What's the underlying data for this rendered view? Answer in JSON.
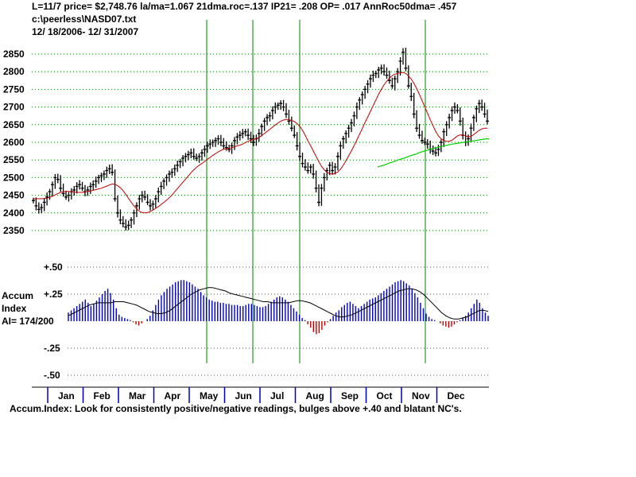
{
  "header": {
    "line1": "L=11/7  price= $2,748.76  la/ma=1.067 21dma.roc=.137 IP21= .208 OP= .017 AnnRoc50dma= .457",
    "line2": "c:\\peerless\\NASD07.txt",
    "line3": " 12/ 18/2006- 12/ 31/2007"
  },
  "colors": {
    "bars": "#000000",
    "ma21": "#c00000",
    "ma200": "#00d000",
    "vlines": "#008000",
    "accum_pos": "#0000c0",
    "accum_neg": "#c00000",
    "accum_ma": "#000000",
    "grid": "#008000"
  },
  "chart_data": [
    {
      "type": "line",
      "title": "",
      "xlabel": "",
      "ylabel": "",
      "y_ticks": [
        "2850",
        "2800",
        "2750",
        "2700",
        "2650",
        "2600",
        "2550",
        "2500",
        "2450",
        "2400",
        "2350"
      ],
      "ylim": [
        2350,
        2850
      ],
      "grid": true,
      "series": [
        {
          "values": [
            2435,
            2420,
            2410,
            2415,
            2430,
            2445,
            2460,
            2480,
            2500,
            2495,
            2470,
            2455,
            2445,
            2450,
            2460,
            2465,
            2475,
            2480,
            2470,
            2460,
            2465,
            2475,
            2480,
            2490,
            2500,
            2505,
            2510,
            2520,
            2525,
            2515,
            2440,
            2400,
            2380,
            2370,
            2360,
            2365,
            2380,
            2400,
            2420,
            2440,
            2450,
            2445,
            2430,
            2420,
            2425,
            2440,
            2460,
            2475,
            2490,
            2500,
            2510,
            2515,
            2525,
            2535,
            2545,
            2555,
            2560,
            2565,
            2570,
            2560,
            2555,
            2560,
            2570,
            2580,
            2590,
            2595,
            2600,
            2605,
            2610,
            2600,
            2590,
            2585,
            2580,
            2590,
            2605,
            2615,
            2620,
            2625,
            2630,
            2620,
            2610,
            2600,
            2610,
            2625,
            2645,
            2660,
            2670,
            2675,
            2690,
            2700,
            2705,
            2710,
            2700,
            2680,
            2660,
            2640,
            2620,
            2590,
            2560,
            2540,
            2530,
            2520,
            2530,
            2510,
            2470,
            2430,
            2470,
            2500,
            2520,
            2535,
            2520,
            2530,
            2560,
            2590,
            2610,
            2625,
            2640,
            2655,
            2675,
            2700,
            2720,
            2735,
            2750,
            2765,
            2780,
            2790,
            2795,
            2805,
            2810,
            2800,
            2790,
            2775,
            2760,
            2780,
            2800,
            2830,
            2855,
            2810,
            2760,
            2730,
            2680,
            2640,
            2620,
            2605,
            2600,
            2595,
            2580,
            2575,
            2570,
            2580,
            2600,
            2630,
            2650,
            2670,
            2690,
            2700,
            2690,
            2660,
            2620,
            2600,
            2610,
            2640,
            2670,
            2695,
            2710,
            2700,
            2680,
            2660
          ]
        },
        {
          "values": [
            2440,
            2440,
            2440,
            2440,
            2441,
            2442,
            2444,
            2447,
            2451,
            2455,
            2458,
            2460,
            2461,
            2461,
            2460,
            2459,
            2458,
            2458,
            2458,
            2459,
            2461,
            2462,
            2464,
            2466,
            2468,
            2470,
            2473,
            2476,
            2479,
            2482,
            2481,
            2477,
            2471,
            2463,
            2452,
            2441,
            2430,
            2420,
            2411,
            2405,
            2401,
            2400,
            2401,
            2404,
            2408,
            2413,
            2418,
            2424,
            2430,
            2436,
            2443,
            2451,
            2460,
            2469,
            2478,
            2487,
            2496,
            2505,
            2514,
            2522,
            2529,
            2535,
            2540,
            2546,
            2552,
            2557,
            2563,
            2568,
            2573,
            2577,
            2580,
            2582,
            2583,
            2585,
            2587,
            2590,
            2592,
            2595,
            2599,
            2603,
            2606,
            2608,
            2611,
            2614,
            2619,
            2625,
            2631,
            2637,
            2643,
            2649,
            2655,
            2660,
            2663,
            2665,
            2664,
            2662,
            2659,
            2653,
            2645,
            2634,
            2620,
            2604,
            2590,
            2575,
            2560,
            2545,
            2532,
            2522,
            2515,
            2511,
            2510,
            2512,
            2516,
            2524,
            2535,
            2548,
            2562,
            2576,
            2591,
            2607,
            2623,
            2639,
            2656,
            2672,
            2688,
            2704,
            2720,
            2736,
            2750,
            2763,
            2773,
            2782,
            2789,
            2793,
            2795,
            2797,
            2798,
            2795,
            2788,
            2779,
            2767,
            2752,
            2736,
            2718,
            2700,
            2682,
            2664,
            2647,
            2631,
            2618,
            2610,
            2605,
            2603,
            2603,
            2606,
            2612,
            2618,
            2621,
            2621,
            2618,
            2615,
            2617,
            2622,
            2628,
            2634,
            2638,
            2640,
            2640
          ]
        },
        {
          "values": [
            2530,
            2532,
            2534,
            2536,
            2538,
            2541,
            2543,
            2545,
            2547,
            2550,
            2552,
            2554,
            2556,
            2558,
            2561,
            2563,
            2565,
            2567,
            2570,
            2572,
            2574,
            2576,
            2578,
            2580,
            2582,
            2584,
            2585,
            2587,
            2588,
            2590,
            2591,
            2592,
            2594,
            2595,
            2596,
            2597,
            2598,
            2599,
            2600,
            2601,
            2602,
            2603,
            2604,
            2605,
            2606,
            2607,
            2608,
            2609,
            2610,
            2610
          ]
        }
      ]
    },
    {
      "type": "bar",
      "title": "",
      "xlabel": "",
      "ylabel": "Accum Index",
      "y_ticks": [
        "+.50",
        "+.25",
        "-.25",
        "-.50"
      ],
      "ylim": [
        -0.5,
        0.5
      ],
      "annotation": "AI= 174/200",
      "series": [
        {
          "values": [
            0.08,
            0.1,
            0.12,
            0.14,
            0.16,
            0.18,
            0.2,
            0.17,
            0.14,
            0.16,
            0.19,
            0.22,
            0.25,
            0.28,
            0.3,
            0.26,
            0.2,
            0.12,
            0.06,
            0.04,
            0.03,
            0.02,
            0.01,
            -0.01,
            -0.03,
            -0.04,
            -0.02,
            0.0,
            0.02,
            0.05,
            0.1,
            0.15,
            0.2,
            0.24,
            0.27,
            0.3,
            0.32,
            0.34,
            0.36,
            0.37,
            0.38,
            0.38,
            0.37,
            0.36,
            0.34,
            0.32,
            0.3,
            0.27,
            0.24,
            0.22,
            0.2,
            0.19,
            0.18,
            0.18,
            0.17,
            0.17,
            0.16,
            0.16,
            0.15,
            0.15,
            0.15,
            0.14,
            0.14,
            0.15,
            0.16,
            0.16,
            0.15,
            0.14,
            0.13,
            0.13,
            0.14,
            0.16,
            0.18,
            0.2,
            0.22,
            0.23,
            0.22,
            0.2,
            0.18,
            0.15,
            0.12,
            0.09,
            0.06,
            0.03,
            0.01,
            -0.03,
            -0.06,
            -0.1,
            -0.12,
            -0.11,
            -0.08,
            -0.04,
            -0.01,
            0.02,
            0.05,
            0.08,
            0.1,
            0.13,
            0.15,
            0.17,
            0.18,
            0.16,
            0.14,
            0.12,
            0.14,
            0.16,
            0.18,
            0.2,
            0.21,
            0.22,
            0.24,
            0.26,
            0.28,
            0.3,
            0.32,
            0.34,
            0.36,
            0.37,
            0.38,
            0.37,
            0.35,
            0.33,
            0.3,
            0.26,
            0.22,
            0.17,
            0.12,
            0.07,
            0.04,
            0.02,
            0.01,
            0.0,
            -0.02,
            -0.04,
            -0.05,
            -0.06,
            -0.05,
            -0.03,
            -0.01,
            0.01,
            0.03,
            0.05,
            0.08,
            0.12,
            0.16,
            0.2,
            0.17,
            0.12,
            0.08,
            0.05
          ]
        },
        {
          "values": [
            0.05,
            0.07,
            0.09,
            0.11,
            0.13,
            0.15,
            0.16,
            0.17,
            0.17,
            0.17,
            0.17,
            0.18,
            0.18,
            0.18,
            0.17,
            0.16,
            0.15,
            0.13,
            0.11,
            0.09,
            0.08,
            0.07,
            0.07,
            0.08,
            0.1,
            0.13,
            0.16,
            0.19,
            0.22,
            0.25,
            0.27,
            0.29,
            0.3,
            0.31,
            0.31,
            0.3,
            0.29,
            0.28,
            0.26,
            0.25,
            0.24,
            0.23,
            0.22,
            0.21,
            0.2,
            0.19,
            0.18,
            0.18,
            0.17,
            0.17,
            0.17,
            0.17,
            0.17,
            0.18,
            0.19,
            0.19,
            0.18,
            0.17,
            0.15,
            0.13,
            0.11,
            0.09,
            0.07,
            0.05,
            0.04,
            0.04,
            0.05,
            0.06,
            0.08,
            0.1,
            0.12,
            0.14,
            0.16,
            0.18,
            0.2,
            0.22,
            0.24,
            0.26,
            0.28,
            0.29,
            0.3,
            0.3,
            0.29,
            0.27,
            0.24,
            0.2,
            0.16,
            0.12,
            0.08,
            0.05,
            0.03,
            0.02,
            0.02,
            0.03,
            0.04,
            0.06,
            0.08,
            0.1,
            0.1,
            0.09
          ]
        }
      ]
    }
  ],
  "x_labels": [
    "Jan",
    "Feb",
    "Mar",
    "Apr",
    "May",
    "Jun",
    "Jul",
    "Aug",
    "Sep",
    "Oct",
    "Nov",
    "Dec"
  ],
  "footer": "Accum.Index: Look for consistently positive/negative readings, bulges above +.40 and blatant NC's."
}
